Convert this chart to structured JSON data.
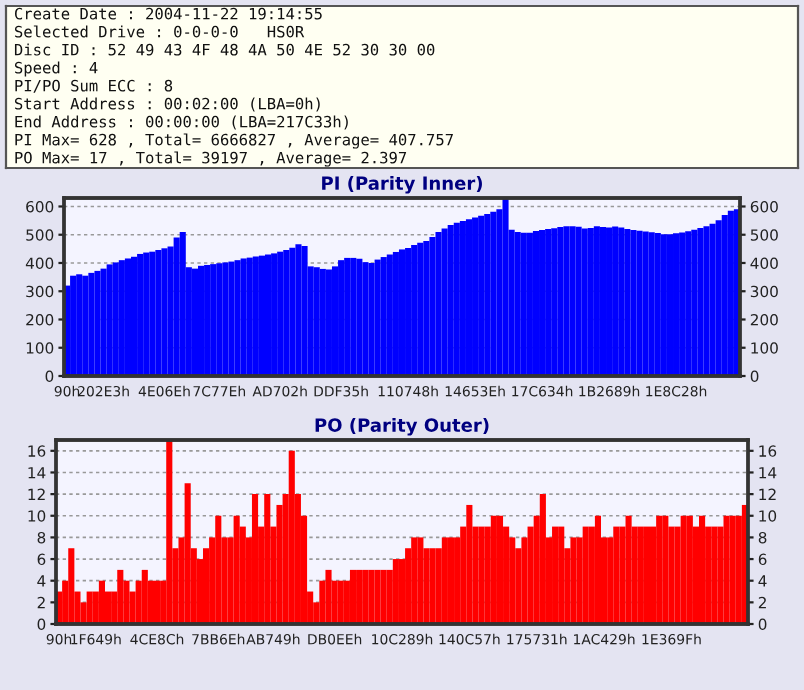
{
  "chart_data": [
    {
      "type": "other",
      "annotations": [
        "Create Date : 2004-11-22 19:14:55",
        "Selected Drive : 0-0-0-0   HS0R",
        "Disc ID : 52 49 43 4F 48 4A 50 4E 52 30 30 00",
        "Speed : 4",
        "PI/PO Sum ECC : 8",
        "Start Address : 00:02:00 (LBA=0h)",
        "End Address : 00:00:00 (LBA=217C33h)",
        "PI Max= 628 , Total= 6666827 , Average= 407.757",
        "PO Max= 17 , Total= 39197 , Average= 2.397"
      ]
    },
    {
      "type": "bar",
      "title": "PI (Parity Inner)",
      "grid": "y",
      "categories": [
        "90h",
        null,
        null,
        null,
        null,
        null,
        "202E3h",
        null,
        null,
        null,
        null,
        null,
        null,
        null,
        null,
        null,
        "4E06Eh",
        null,
        null,
        null,
        null,
        null,
        null,
        null,
        null,
        "7C77Eh",
        null,
        null,
        null,
        null,
        null,
        null,
        null,
        null,
        null,
        "AD702h",
        null,
        null,
        null,
        null,
        null,
        null,
        null,
        null,
        null,
        "DDF35h",
        null,
        null,
        null,
        null,
        null,
        null,
        null,
        null,
        null,
        null,
        "110748h",
        null,
        null,
        null,
        null,
        null,
        null,
        null,
        null,
        null,
        null,
        "14653Eh",
        null,
        null,
        null,
        null,
        null,
        null,
        null,
        null,
        null,
        null,
        "17C634h",
        null,
        null,
        null,
        null,
        null,
        null,
        null,
        null,
        null,
        null,
        "1B2689h",
        null,
        null,
        null,
        null,
        null,
        null,
        null,
        null,
        null,
        null,
        "1E8C28h",
        null,
        null,
        null,
        null,
        null,
        null,
        null,
        null,
        null,
        null
      ],
      "series": [
        {
          "color": "#0000ff",
          "values": [
            320,
            355,
            360,
            355,
            365,
            372,
            380,
            395,
            402,
            410,
            416,
            422,
            432,
            437,
            440,
            446,
            452,
            458,
            490,
            510,
            385,
            380,
            390,
            393,
            396,
            399,
            402,
            405,
            410,
            416,
            419,
            423,
            426,
            430,
            434,
            440,
            446,
            454,
            466,
            460,
            388,
            385,
            379,
            377,
            388,
            410,
            418,
            418,
            415,
            403,
            400,
            412,
            421,
            430,
            439,
            448,
            453,
            464,
            472,
            478,
            492,
            510,
            522,
            534,
            542,
            549,
            555,
            561,
            567,
            573,
            581,
            590,
            628,
            518,
            510,
            507,
            507,
            513,
            517,
            520,
            523,
            527,
            530,
            530,
            528,
            522,
            524,
            530,
            527,
            526,
            529,
            526,
            520,
            517,
            514,
            511,
            509,
            506,
            502,
            502,
            505,
            508,
            512,
            518,
            524,
            530,
            539,
            551,
            570,
            585,
            590
          ]
        }
      ],
      "ylim": [
        0,
        630
      ],
      "yticks": [
        0,
        100,
        200,
        300,
        400,
        500,
        600
      ],
      "y2lim": [
        0,
        630
      ],
      "y2ticks": [
        0,
        100,
        200,
        300,
        400,
        500,
        600
      ]
    },
    {
      "type": "bar",
      "title": "PO (Parity Outer)",
      "grid": "y",
      "categories": [
        "90h",
        null,
        null,
        null,
        null,
        null,
        "1F649h",
        null,
        null,
        null,
        null,
        null,
        null,
        null,
        null,
        null,
        "4CE8Ch",
        null,
        null,
        null,
        null,
        null,
        null,
        null,
        null,
        null,
        "7BB6Eh",
        null,
        null,
        null,
        null,
        null,
        null,
        null,
        null,
        "AB749h",
        null,
        null,
        null,
        null,
        null,
        null,
        null,
        null,
        null,
        "DB0EEh",
        null,
        null,
        null,
        null,
        null,
        null,
        null,
        null,
        null,
        null,
        "10C289h",
        null,
        null,
        null,
        null,
        null,
        null,
        null,
        null,
        null,
        null,
        "140C57h",
        null,
        null,
        null,
        null,
        null,
        null,
        null,
        null,
        null,
        null,
        "175731h",
        null,
        null,
        null,
        null,
        null,
        null,
        null,
        null,
        null,
        null,
        "1AC429h",
        null,
        null,
        null,
        null,
        null,
        null,
        null,
        null,
        null,
        null,
        "1E369Fh",
        null,
        null,
        null,
        null,
        null,
        null,
        null,
        null,
        null,
        null,
        null,
        null
      ],
      "series": [
        {
          "color": "#ff0000",
          "values": [
            3,
            4,
            7,
            3,
            2,
            3,
            3,
            4,
            3,
            3,
            5,
            4,
            3,
            4,
            5,
            4,
            4,
            4,
            17,
            7,
            8,
            13,
            7,
            6,
            7,
            8,
            10,
            8,
            8,
            10,
            9,
            8,
            12,
            9,
            12,
            9,
            11,
            12,
            16,
            12,
            10,
            3,
            2,
            4,
            5,
            4,
            4,
            4,
            5,
            5,
            5,
            5,
            5,
            5,
            5,
            6,
            6,
            7,
            8,
            8,
            7,
            7,
            7,
            8,
            8,
            8,
            9,
            11,
            9,
            9,
            9,
            10,
            10,
            9,
            8,
            7,
            8,
            9,
            10,
            12,
            8,
            9,
            9,
            7,
            8,
            8,
            9,
            9,
            10,
            8,
            8,
            9,
            9,
            10,
            9,
            9,
            9,
            9,
            10,
            10,
            9,
            9,
            10,
            10,
            9,
            10,
            9,
            9,
            9,
            10,
            10,
            10,
            11
          ]
        }
      ],
      "ylim": [
        0,
        17
      ],
      "yticks": [
        0,
        2,
        4,
        6,
        8,
        10,
        12,
        14,
        16
      ],
      "y2lim": [
        0,
        17
      ],
      "y2ticks": [
        0,
        2,
        4,
        6,
        8,
        10,
        12,
        14,
        16
      ]
    }
  ]
}
